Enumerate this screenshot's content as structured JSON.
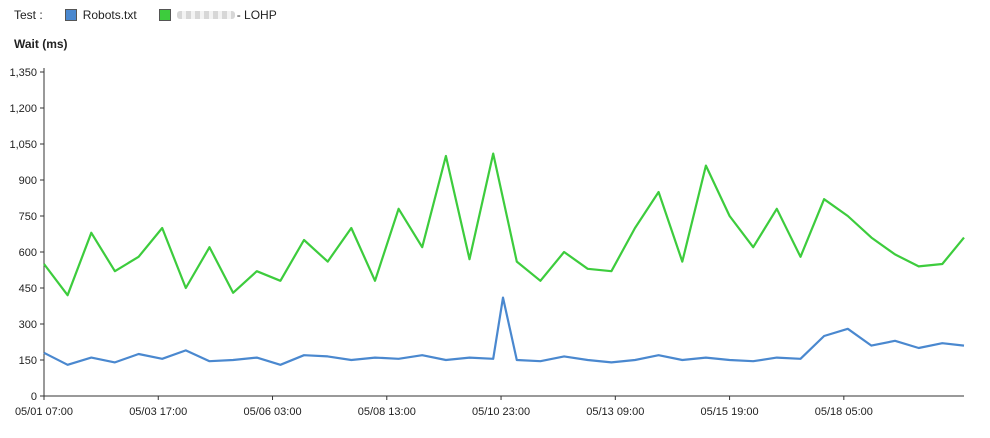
{
  "legend": {
    "label": "Test :",
    "items": [
      {
        "name": "Robots.txt",
        "color": "#4a88cf"
      },
      {
        "name": "- LOHP",
        "color": "#3dcc3d",
        "obscured_prefix": true
      }
    ]
  },
  "chart_data": {
    "type": "line",
    "title": "",
    "ylabel": "Wait (ms)",
    "xlabel": "",
    "ylim": [
      0,
      1350
    ],
    "yticks": [
      0,
      150,
      300,
      450,
      600,
      750,
      900,
      1050,
      1200,
      1350
    ],
    "ytick_labels": [
      "0",
      "150",
      "300",
      "450",
      "600",
      "750",
      "900",
      "1,050",
      "1,200",
      "1,350"
    ],
    "x_start": "05/01 07:00",
    "x_end": "05/20 18:00",
    "xticks": [
      "05/01 07:00",
      "05/03 17:00",
      "05/06 03:00",
      "05/08 13:00",
      "05/10 23:00",
      "05/13 09:00",
      "05/15 19:00",
      "05/18 05:00"
    ],
    "grid": false,
    "legend_position": "top-left",
    "series": [
      {
        "name": "Robots.txt",
        "color": "#4a88cf",
        "x": [
          "05/01 07:00",
          "05/01 19:00",
          "05/02 07:00",
          "05/02 19:00",
          "05/03 07:00",
          "05/03 19:00",
          "05/04 07:00",
          "05/04 19:00",
          "05/05 07:00",
          "05/05 19:00",
          "05/06 07:00",
          "05/06 19:00",
          "05/07 07:00",
          "05/07 19:00",
          "05/08 07:00",
          "05/08 19:00",
          "05/09 07:00",
          "05/09 19:00",
          "05/10 07:00",
          "05/10 19:00",
          "05/11 00:00",
          "05/11 07:00",
          "05/11 19:00",
          "05/12 07:00",
          "05/12 19:00",
          "05/13 07:00",
          "05/13 19:00",
          "05/14 07:00",
          "05/14 19:00",
          "05/15 07:00",
          "05/15 19:00",
          "05/16 07:00",
          "05/16 19:00",
          "05/17 07:00",
          "05/17 19:00",
          "05/18 07:00",
          "05/18 19:00",
          "05/19 07:00",
          "05/19 19:00",
          "05/20 07:00",
          "05/20 18:00"
        ],
        "values": [
          180,
          130,
          160,
          140,
          175,
          155,
          190,
          145,
          150,
          160,
          130,
          170,
          165,
          150,
          160,
          155,
          170,
          150,
          160,
          155,
          410,
          150,
          145,
          165,
          150,
          140,
          150,
          170,
          150,
          160,
          150,
          145,
          160,
          155,
          250,
          280,
          210,
          230,
          200,
          220,
          210
        ]
      },
      {
        "name": "- LOHP",
        "color": "#3dcc3d",
        "x": [
          "05/01 07:00",
          "05/01 19:00",
          "05/02 07:00",
          "05/02 19:00",
          "05/03 07:00",
          "05/03 19:00",
          "05/04 07:00",
          "05/04 19:00",
          "05/05 07:00",
          "05/05 19:00",
          "05/06 07:00",
          "05/06 19:00",
          "05/07 07:00",
          "05/07 19:00",
          "05/08 07:00",
          "05/08 19:00",
          "05/09 07:00",
          "05/09 19:00",
          "05/10 07:00",
          "05/10 19:00",
          "05/11 07:00",
          "05/11 19:00",
          "05/12 07:00",
          "05/12 19:00",
          "05/13 07:00",
          "05/13 19:00",
          "05/14 07:00",
          "05/14 19:00",
          "05/15 07:00",
          "05/15 19:00",
          "05/16 07:00",
          "05/16 19:00",
          "05/17 07:00",
          "05/17 19:00",
          "05/18 07:00",
          "05/18 19:00",
          "05/19 07:00",
          "05/19 19:00",
          "05/20 07:00",
          "05/20 18:00"
        ],
        "values": [
          550,
          420,
          680,
          520,
          580,
          700,
          450,
          620,
          430,
          520,
          480,
          650,
          560,
          700,
          480,
          780,
          620,
          1000,
          570,
          1010,
          560,
          480,
          600,
          530,
          520,
          700,
          850,
          560,
          960,
          750,
          620,
          780,
          580,
          820,
          750,
          660,
          590,
          540,
          550,
          660
        ]
      }
    ]
  }
}
